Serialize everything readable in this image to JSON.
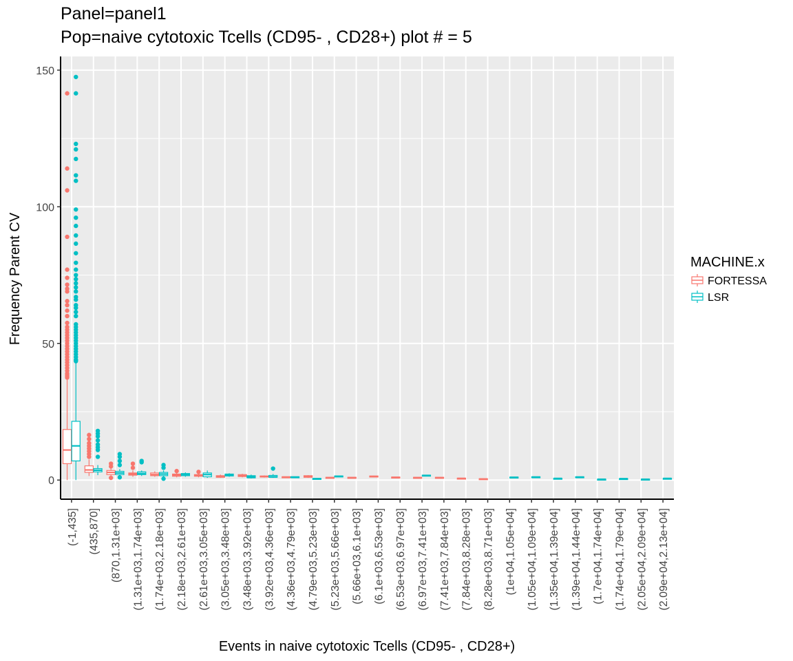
{
  "title_line1": "Panel=panel1",
  "title_line2": "Pop=naive cytotoxic Tcells (CD95- , CD28+) plot # = 5",
  "colors": {
    "FORTESSA": "#F8766D",
    "LSR": "#00BFC4",
    "panel_bg": "#EBEBEB",
    "grid": "#FFFFFF"
  },
  "chart_data": {
    "type": "box",
    "xlabel": "Events in naive cytotoxic Tcells (CD95- , CD28+)",
    "ylabel": "Frequency Parent CV",
    "ylim": [
      -7,
      155
    ],
    "yticks": [
      0,
      50,
      100,
      150
    ],
    "grid": true,
    "legend": {
      "title": "MACHINE.x",
      "position": "right",
      "entries": [
        "FORTESSA",
        "LSR"
      ]
    },
    "categories": [
      "(-1,435]",
      "(435,870]",
      "(870,1.31e+03]",
      "(1.31e+03,1.74e+03]",
      "(1.74e+03,2.18e+03]",
      "(2.18e+03,2.61e+03]",
      "(2.61e+03,3.05e+03]",
      "(3.05e+03,3.48e+03]",
      "(3.48e+03,3.92e+03]",
      "(3.92e+03,4.36e+03]",
      "(4.36e+03,4.79e+03]",
      "(4.79e+03,5.23e+03]",
      "(5.23e+03,5.66e+03]",
      "(5.66e+03,6.1e+03]",
      "(6.1e+03,6.53e+03]",
      "(6.53e+03,6.97e+03]",
      "(6.97e+03,7.41e+03]",
      "(7.41e+03,7.84e+03]",
      "(7.84e+03,8.28e+03]",
      "(8.28e+03,8.71e+03]",
      "(1e+04,1.05e+04]",
      "(1.05e+04,1.09e+04]",
      "(1.35e+04,1.39e+04]",
      "(1.39e+04,1.44e+04]",
      "(1.7e+04,1.74e+04]",
      "(1.74e+04,1.79e+04]",
      "(2.05e+04,2.09e+04]",
      "(2.09e+04,2.13e+04]"
    ],
    "series": [
      {
        "name": "FORTESSA",
        "boxes": [
          {
            "cat": 0,
            "min": 0,
            "q1": 6,
            "median": 11,
            "q3": 18.5,
            "max": 37,
            "outliers": [
              37.5,
              38,
              38.5,
              39,
              40,
              41,
              42,
              43,
              44,
              45,
              46,
              47,
              48,
              49,
              50,
              51,
              52,
              53,
              54,
              55,
              56,
              57.5,
              60,
              62,
              64,
              65.5,
              69,
              70,
              71.5,
              74,
              77,
              89,
              106,
              114,
              141.5
            ]
          },
          {
            "cat": 1,
            "min": 1.5,
            "q1": 2.8,
            "median": 3.7,
            "q3": 5.2,
            "max": 7.5,
            "outliers": [
              8.5,
              9.5,
              10.5,
              11.5,
              12.5,
              13.5,
              15,
              16.5
            ]
          },
          {
            "cat": 2,
            "min": 1,
            "q1": 2,
            "median": 2.8,
            "q3": 3.5,
            "max": 4.5,
            "outliers": [
              0.8,
              5,
              6
            ]
          },
          {
            "cat": 3,
            "min": 1.2,
            "q1": 1.8,
            "median": 2.2,
            "q3": 2.6,
            "max": 3.5,
            "outliers": [
              4.5,
              6
            ]
          },
          {
            "cat": 4,
            "min": 1.2,
            "q1": 1.6,
            "median": 2,
            "q3": 2.6,
            "max": 3.2,
            "outliers": []
          },
          {
            "cat": 5,
            "min": 1,
            "q1": 1.4,
            "median": 1.8,
            "q3": 2.2,
            "max": 2.8,
            "outliers": [
              3.3
            ]
          },
          {
            "cat": 6,
            "min": 1,
            "q1": 1.4,
            "median": 1.7,
            "q3": 2,
            "max": 2.6,
            "outliers": [
              3
            ]
          },
          {
            "cat": 7,
            "min": 0.8,
            "q1": 1,
            "median": 1.3,
            "q3": 1.6,
            "max": 2,
            "outliers": []
          },
          {
            "cat": 8,
            "min": 1,
            "q1": 1.3,
            "median": 1.6,
            "q3": 2,
            "max": 2.3,
            "outliers": []
          },
          {
            "cat": 9,
            "min": 0.9,
            "q1": 1.1,
            "median": 1.3,
            "q3": 1.5,
            "max": 1.7,
            "outliers": []
          },
          {
            "cat": 10,
            "min": 0.9,
            "q1": 1,
            "median": 1.1,
            "q3": 1.2,
            "max": 1.3,
            "outliers": []
          },
          {
            "cat": 11,
            "min": 0.8,
            "q1": 1,
            "median": 1.3,
            "q3": 1.6,
            "max": 1.8,
            "outliers": []
          },
          {
            "cat": 12,
            "min": 0.6,
            "q1": 0.8,
            "median": 0.9,
            "q3": 1,
            "max": 1.1,
            "outliers": []
          },
          {
            "cat": 13,
            "min": 0.7,
            "q1": 0.8,
            "median": 0.9,
            "q3": 1,
            "max": 1.1,
            "outliers": []
          },
          {
            "cat": 14,
            "min": 1,
            "q1": 1.1,
            "median": 1.3,
            "q3": 1.5,
            "max": 1.6,
            "outliers": []
          },
          {
            "cat": 15,
            "min": 0.8,
            "q1": 0.9,
            "median": 1,
            "q3": 1.1,
            "max": 1.2,
            "outliers": []
          },
          {
            "cat": 16,
            "min": 0.7,
            "q1": 0.8,
            "median": 0.9,
            "q3": 1,
            "max": 1.1,
            "outliers": []
          },
          {
            "cat": 17,
            "min": 0.7,
            "q1": 0.8,
            "median": 0.9,
            "q3": 1,
            "max": 1.1,
            "outliers": []
          },
          {
            "cat": 18,
            "min": 0.4,
            "q1": 0.5,
            "median": 0.6,
            "q3": 0.7,
            "max": 0.8,
            "outliers": []
          },
          {
            "cat": 19,
            "min": 0.2,
            "q1": 0.3,
            "median": 0.4,
            "q3": 0.5,
            "max": 0.6,
            "outliers": []
          }
        ]
      },
      {
        "name": "LSR",
        "boxes": [
          {
            "cat": 0,
            "min": 0,
            "q1": 7,
            "median": 12.5,
            "q3": 21.5,
            "max": 43,
            "outliers": [
              43.5,
              44,
              45,
              46,
              47,
              48,
              49,
              50,
              51,
              52,
              53,
              54,
              55,
              56,
              57,
              60,
              61.5,
              63,
              64,
              66,
              67,
              69,
              70.5,
              72,
              73.5,
              75,
              77,
              79.5,
              83,
              86.5,
              89.5,
              93,
              96,
              99,
              109.5,
              111.5,
              117.5,
              121,
              123,
              141.5,
              147.5
            ]
          },
          {
            "cat": 1,
            "min": 1.8,
            "q1": 3,
            "median": 3.6,
            "q3": 4.2,
            "max": 5.5,
            "outliers": [
              8.5,
              11,
              12,
              13,
              14.5,
              16,
              17,
              18
            ]
          },
          {
            "cat": 2,
            "min": 1.5,
            "q1": 2,
            "median": 2.6,
            "q3": 3.2,
            "max": 4,
            "outliers": [
              1,
              5.5,
              7,
              8.5,
              9.5
            ]
          },
          {
            "cat": 3,
            "min": 1.5,
            "q1": 2,
            "median": 2.4,
            "q3": 3,
            "max": 3.5,
            "outliers": [
              6.5,
              7
            ]
          },
          {
            "cat": 4,
            "min": 1,
            "q1": 1.6,
            "median": 2.2,
            "q3": 2.8,
            "max": 3.5,
            "outliers": [
              0.5,
              4.5,
              5.5
            ]
          },
          {
            "cat": 5,
            "min": 1.2,
            "q1": 1.6,
            "median": 2,
            "q3": 2.4,
            "max": 2.8,
            "outliers": []
          },
          {
            "cat": 6,
            "min": 0.8,
            "q1": 1.2,
            "median": 2,
            "q3": 2.6,
            "max": 3.5,
            "outliers": []
          },
          {
            "cat": 7,
            "min": 1.2,
            "q1": 1.5,
            "median": 1.8,
            "q3": 2.2,
            "max": 2.5,
            "outliers": []
          },
          {
            "cat": 8,
            "min": 0.6,
            "q1": 0.8,
            "median": 1.2,
            "q3": 1.6,
            "max": 2,
            "outliers": []
          },
          {
            "cat": 9,
            "min": 0.8,
            "q1": 1,
            "median": 1.2,
            "q3": 1.7,
            "max": 2.2,
            "outliers": [
              4.2
            ]
          },
          {
            "cat": 10,
            "min": 0.9,
            "q1": 1,
            "median": 1.1,
            "q3": 1.2,
            "max": 1.3,
            "outliers": []
          },
          {
            "cat": 11,
            "min": 0.3,
            "q1": 0.4,
            "median": 0.5,
            "q3": 0.6,
            "max": 0.7,
            "outliers": []
          },
          {
            "cat": 12,
            "min": 1.2,
            "q1": 1.3,
            "median": 1.4,
            "q3": 1.5,
            "max": 1.6,
            "outliers": []
          },
          {
            "cat": 16,
            "min": 1.5,
            "q1": 1.6,
            "median": 1.7,
            "q3": 1.8,
            "max": 1.9,
            "outliers": []
          },
          {
            "cat": 20,
            "min": 0.8,
            "q1": 0.9,
            "median": 1,
            "q3": 1.1,
            "max": 1.2,
            "outliers": []
          },
          {
            "cat": 21,
            "min": 0.9,
            "q1": 1,
            "median": 1.1,
            "q3": 1.2,
            "max": 1.3,
            "outliers": []
          },
          {
            "cat": 22,
            "min": 0.5,
            "q1": 0.55,
            "median": 0.6,
            "q3": 0.65,
            "max": 0.7,
            "outliers": []
          },
          {
            "cat": 23,
            "min": 0.9,
            "q1": 1,
            "median": 1.1,
            "q3": 1.2,
            "max": 1.3,
            "outliers": []
          },
          {
            "cat": 24,
            "min": 0.2,
            "q1": 0.25,
            "median": 0.3,
            "q3": 0.35,
            "max": 0.4,
            "outliers": []
          },
          {
            "cat": 25,
            "min": 0.4,
            "q1": 0.45,
            "median": 0.5,
            "q3": 0.55,
            "max": 0.6,
            "outliers": []
          },
          {
            "cat": 26,
            "min": 0.2,
            "q1": 0.25,
            "median": 0.3,
            "q3": 0.35,
            "max": 0.4,
            "outliers": []
          },
          {
            "cat": 27,
            "min": 0.5,
            "q1": 0.55,
            "median": 0.6,
            "q3": 0.65,
            "max": 0.7,
            "outliers": []
          }
        ]
      }
    ]
  }
}
